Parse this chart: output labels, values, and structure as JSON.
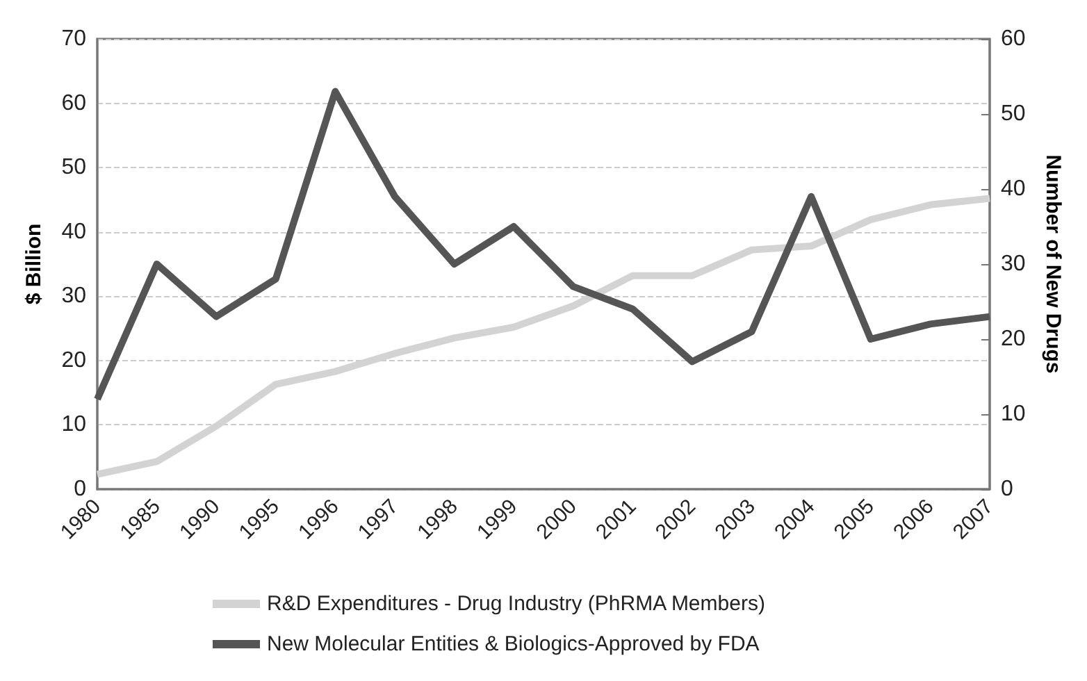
{
  "chart_data": {
    "type": "line",
    "ylabel": "$ Billion",
    "y2label": "Number of New Drugs",
    "categories": [
      "1980",
      "1985",
      "1990",
      "1995",
      "1996",
      "1997",
      "1998",
      "1999",
      "2000",
      "2001",
      "2002",
      "2003",
      "2004",
      "2005",
      "2006",
      "2007"
    ],
    "series": [
      {
        "name": "R&D Expenditures - Drug Industry (PhRMA Members)",
        "color": "#d3d3d3",
        "values": [
          2.3,
          4.3,
          9.8,
          16.3,
          18.3,
          21.1,
          23.5,
          25.2,
          28.5,
          33.2,
          33.2,
          37.2,
          37.8,
          41.9,
          44.2,
          45.2
        ]
      },
      {
        "name": "New Molecular Entities & Biologics-Approved by FDA",
        "color": "#555555",
        "axis": "y2",
        "values": [
          12,
          30,
          23,
          28,
          53,
          39,
          30,
          35,
          27,
          24,
          17,
          21,
          39,
          20,
          22,
          23
        ]
      }
    ],
    "ylim": [
      0,
      70
    ],
    "yticks": [
      0,
      10,
      20,
      30,
      40,
      50,
      60,
      70
    ],
    "y2lim": [
      0,
      60
    ],
    "y2ticks": [
      0,
      10,
      20,
      30,
      40,
      50,
      60
    ],
    "grid": "y",
    "line_style": "solid",
    "marker": "none",
    "legend": "bottom"
  }
}
